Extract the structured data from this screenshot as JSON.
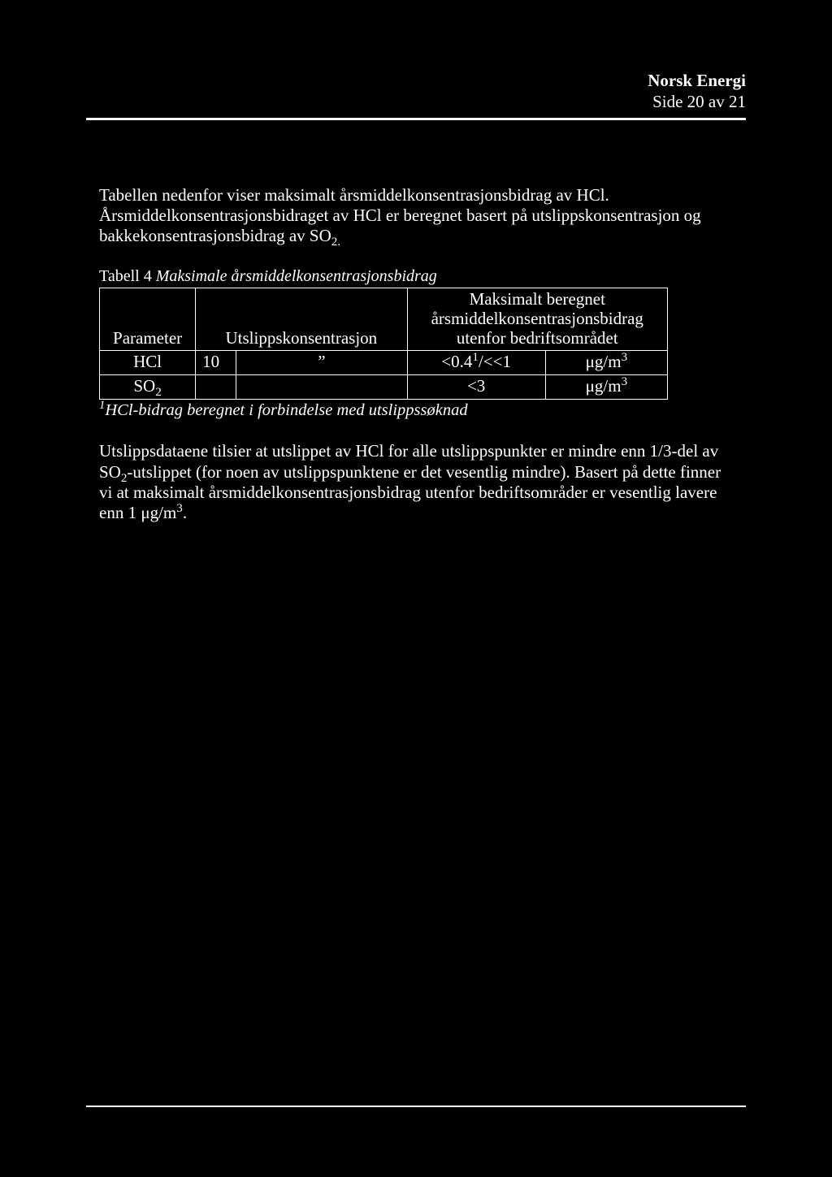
{
  "header": {
    "org": "Norsk Energi",
    "page_line": "Side 20 av 21"
  },
  "intro": "Tabellen nedenfor viser maksimalt årsmiddelkonsentrasjonsbidrag av HCl. Årsmiddelkonsentrasjonsbidraget av HCl er beregnet basert på utslippskonsentrasjon og bakkekonsentrasjonsbidrag av SO",
  "intro_sub": "2.",
  "table": {
    "caption_prefix": "Tabell 4 ",
    "caption_italic": "Maksimale årsmiddelkonsentrasjonsbidrag",
    "head_parameter": "Parameter",
    "head_utslipp": "Utslippskonsentrasjon",
    "head_maks": "Maksimalt beregnet årsmiddelkonsentrasjonsbidrag utenfor bedriftsområdet",
    "rows": [
      {
        "param_html": "HCl",
        "val": "10",
        "dd": "”",
        "v2_pre": "<0.4",
        "v2_sup": "1",
        "v2_post": "/<<1",
        "unit_pre": "μg/m",
        "unit_sup": "3"
      },
      {
        "param_html": "SO",
        "param_sub": "2",
        "val": "",
        "dd": "",
        "v2_pre": "<3",
        "v2_sup": "",
        "v2_post": "",
        "unit_pre": "μg/m",
        "unit_sup": "3"
      }
    ]
  },
  "footnote_sup": "1",
  "footnote_text": "HCl-bidrag beregnet i forbindelse med utslippssøknad",
  "body_after_1": "Utslippsdataene tilsier at utslippet av HCl for alle utslippspunkter er mindre enn 1/3-del av SO",
  "body_after_sub1": "2",
  "body_after_2": "-utslippet (for noen av utslippspunktene er det vesentlig mindre). Basert på dette finner vi at maksimalt årsmiddelkonsentrasjonsbidrag utenfor bedriftsområder er vesentlig lavere enn 1 μg/m",
  "body_after_sup": "3",
  "body_after_3": ".",
  "colors": {
    "bg": "#000000",
    "fg": "#ffffff"
  }
}
